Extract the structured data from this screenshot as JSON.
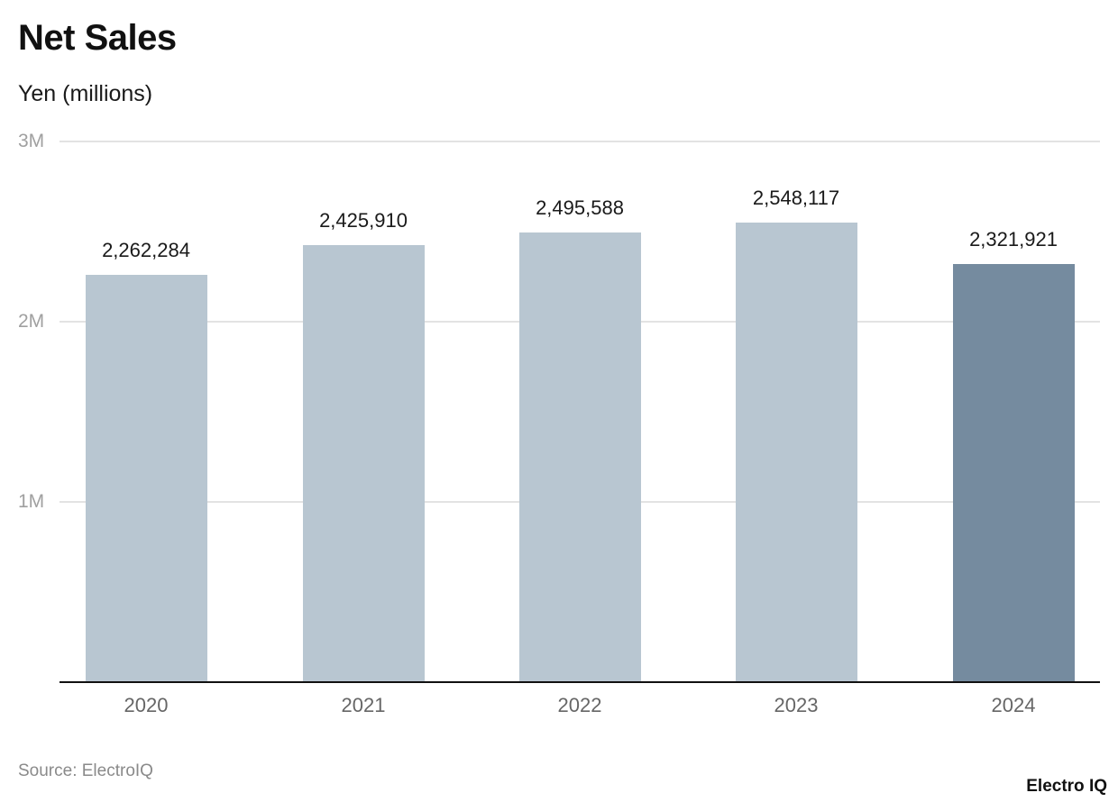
{
  "header": {
    "title": "Net Sales",
    "subtitle": "Yen (millions)"
  },
  "footer": {
    "source": "Source: ElectroIQ",
    "brand": "Electro IQ"
  },
  "colors": {
    "bar_default": "#b8c6d1",
    "bar_highlight": "#758b9f",
    "gridline": "#e3e3e3",
    "axis": "#111111"
  },
  "axis": {
    "y_ticks": [
      {
        "label": "3M",
        "value": 3000000
      },
      {
        "label": "2M",
        "value": 2000000
      },
      {
        "label": "1M",
        "value": 1000000
      }
    ]
  },
  "bars": [
    {
      "year": "2020",
      "label": "2,262,284",
      "value": 2262284,
      "highlight": false
    },
    {
      "year": "2021",
      "label": "2,425,910",
      "value": 2425910,
      "highlight": false
    },
    {
      "year": "2022",
      "label": "2,495,588",
      "value": 2495588,
      "highlight": false
    },
    {
      "year": "2023",
      "label": "2,548,117",
      "value": 2548117,
      "highlight": false
    },
    {
      "year": "2024",
      "label": "2,321,921",
      "value": 2321921,
      "highlight": true
    }
  ],
  "chart_data": {
    "type": "bar",
    "title": "Net Sales",
    "subtitle": "Yen (millions)",
    "categories": [
      "2020",
      "2021",
      "2022",
      "2023",
      "2024"
    ],
    "values": [
      2262284,
      2425910,
      2495588,
      2548117,
      2321921
    ],
    "data_labels": [
      "2,262,284",
      "2,425,910",
      "2,495,588",
      "2,548,117",
      "2,321,921"
    ],
    "xlabel": "",
    "ylabel": "Yen (millions)",
    "ylim": [
      0,
      3000000
    ],
    "y_ticks": [
      "1M",
      "2M",
      "3M"
    ],
    "grid": true,
    "legend": null,
    "highlighted_category": "2024",
    "source": "Source: ElectroIQ"
  }
}
